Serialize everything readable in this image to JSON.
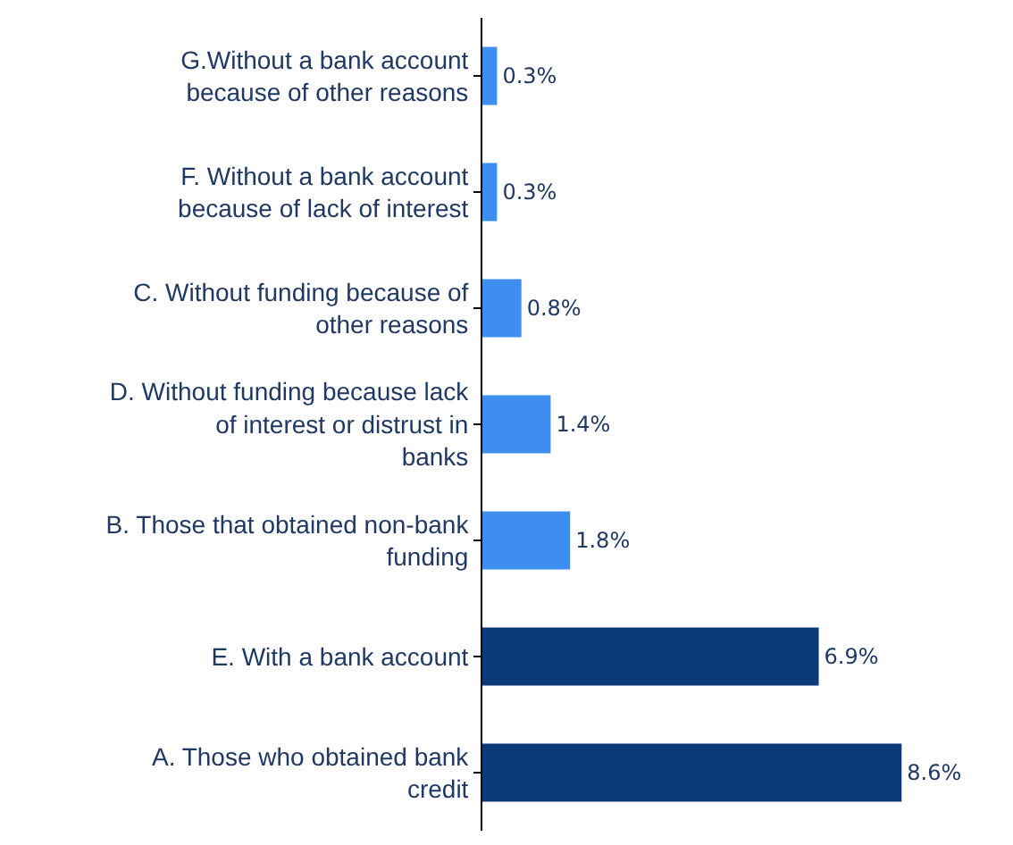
{
  "chart_data": {
    "type": "bar",
    "orientation": "horizontal",
    "categories": [
      "G.Without a bank account because of other reasons",
      "F. Without a bank account because of lack of interest",
      "C. Without funding because of other reasons",
      "D. Without funding because lack of interest or distrust in banks",
      "B. Those that obtained non-bank funding",
      "E. With a bank account",
      "A. Those who obtained bank credit"
    ],
    "values": [
      0.3,
      0.3,
      0.8,
      1.4,
      1.8,
      6.9,
      8.6
    ],
    "colors": [
      "#3d8ef0",
      "#3d8ef0",
      "#3d8ef0",
      "#3d8ef0",
      "#3d8ef0",
      "#0b3a78",
      "#0b3a78"
    ],
    "value_labels": [
      "0.3%",
      "0.3%",
      "0.8%",
      "1.4%",
      "1.8%",
      "6.9%",
      "8.6%"
    ],
    "tick_labels": "y"
  }
}
